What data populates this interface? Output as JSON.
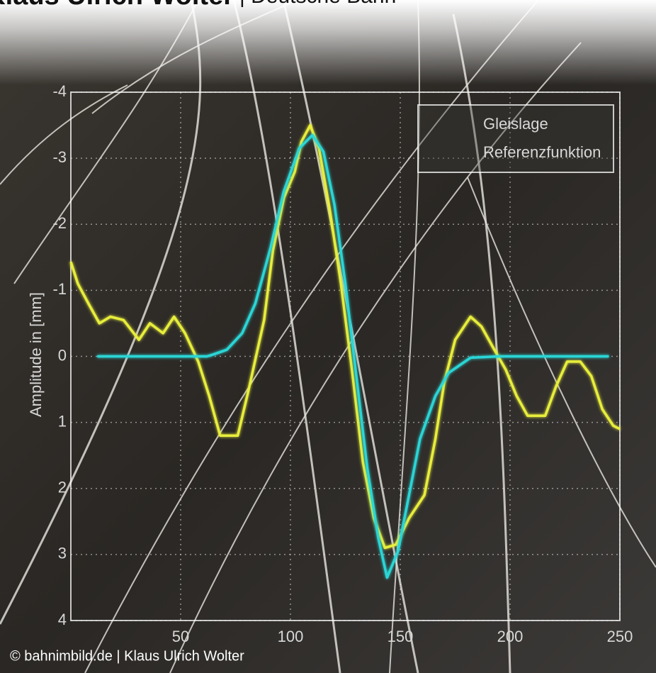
{
  "header": {
    "author": "Klaus Ulrich Wolter",
    "organization": "| Deutsche Bahn"
  },
  "footer": "© bahnimbild.de | Klaus Ulrich Wolter",
  "chart_data": {
    "type": "line",
    "ylabel": "Amplitude in [mm]",
    "xlim": [
      0,
      250
    ],
    "xticks": [
      50,
      100,
      150,
      200,
      250
    ],
    "ylim": [
      4,
      -4
    ],
    "yticks": [
      -4,
      -3,
      -2,
      -1,
      0,
      1,
      2,
      3,
      4
    ],
    "grid": true,
    "legend": "upper right",
    "series": [
      {
        "name": "Gleislage",
        "color": "#e8ee3a",
        "x": [
          0,
          3.2,
          8,
          13,
          18,
          24,
          31,
          36,
          42,
          47,
          52,
          58,
          63,
          68,
          76,
          81,
          88,
          92,
          97,
          102,
          105,
          109,
          113,
          118,
          123,
          128,
          133,
          138,
          143,
          148,
          154,
          161,
          166,
          170,
          175,
          182,
          187,
          192,
          198,
          203,
          208,
          216,
          221,
          226,
          232,
          237,
          242,
          247,
          250
        ],
        "values": [
          -1.43,
          -1.1,
          -0.8,
          -0.5,
          -0.6,
          -0.55,
          -0.25,
          -0.5,
          -0.35,
          -0.6,
          -0.35,
          0.08,
          0.6,
          1.2,
          1.2,
          0.5,
          -0.55,
          -1.6,
          -2.4,
          -2.8,
          -3.25,
          -3.5,
          -3.15,
          -2.2,
          -1.1,
          0.2,
          1.6,
          2.45,
          2.9,
          2.85,
          2.45,
          2.1,
          1.25,
          0.4,
          -0.25,
          -0.6,
          -0.45,
          -0.15,
          0.2,
          0.6,
          0.9,
          0.9,
          0.45,
          0.08,
          0.08,
          0.3,
          0.8,
          1.05,
          1.1
        ]
      },
      {
        "name": "Referenzfunktion",
        "color": "#2ad6d6",
        "x": [
          12,
          62,
          65,
          71,
          78,
          84,
          91,
          97,
          104,
          110,
          115,
          120,
          125,
          130,
          135,
          140,
          144,
          149,
          154,
          159,
          166,
          172,
          182,
          195,
          245
        ],
        "values": [
          0,
          0,
          -0.03,
          -0.1,
          -0.35,
          -0.8,
          -1.65,
          -2.5,
          -3.15,
          -3.35,
          -3.1,
          -2.3,
          -1.1,
          0.3,
          1.7,
          2.75,
          3.35,
          2.95,
          2.1,
          1.25,
          0.6,
          0.25,
          0.02,
          0,
          0
        ]
      }
    ]
  }
}
